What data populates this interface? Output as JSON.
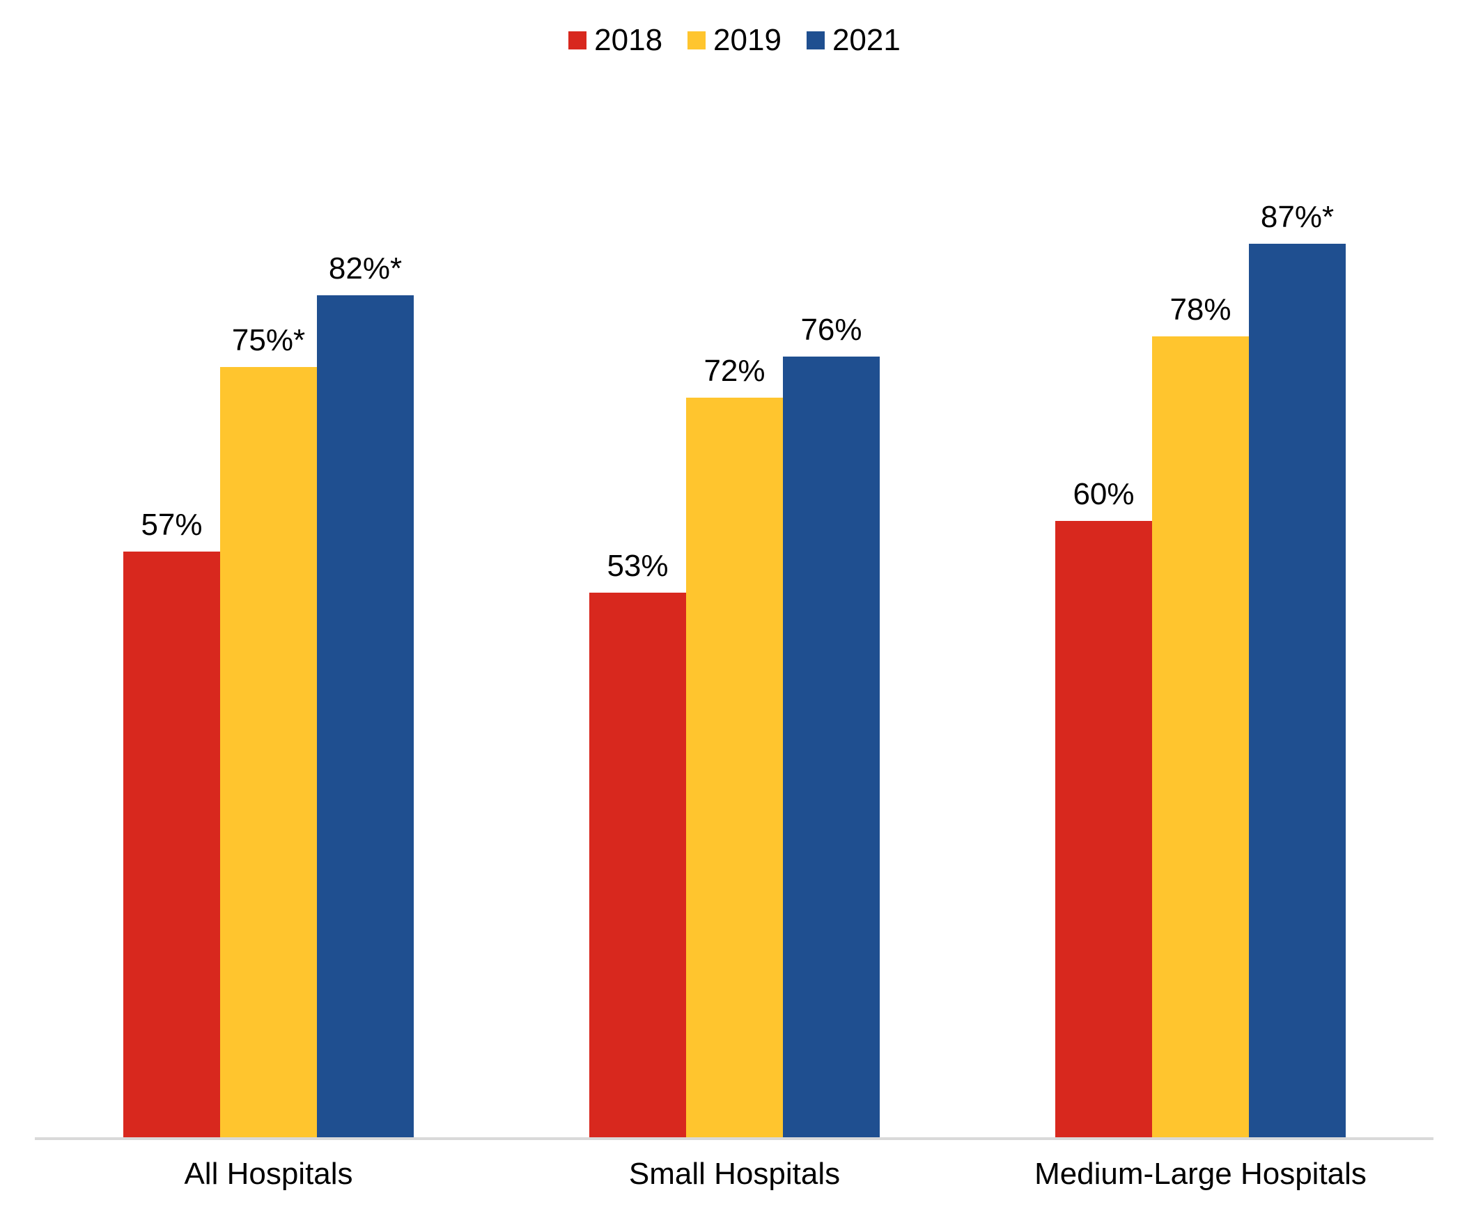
{
  "chart_data": {
    "type": "bar",
    "title": "",
    "xlabel": "",
    "ylabel": "",
    "ylim": [
      0,
      100
    ],
    "grid": false,
    "legend_position": "top-center",
    "axis_line_color": "#d9d9d9",
    "label_color": "#000000",
    "categories": [
      "All Hospitals",
      "Small Hospitals",
      "Medium-Large Hospitals"
    ],
    "series": [
      {
        "name": "2018",
        "color": "#d8281e",
        "values": [
          57,
          53,
          60
        ],
        "labels": [
          "57%",
          "53%",
          "60%"
        ]
      },
      {
        "name": "2019",
        "color": "#ffc52e",
        "values": [
          75,
          72,
          78
        ],
        "labels": [
          "75%*",
          "72%",
          "78%"
        ]
      },
      {
        "name": "2021",
        "color": "#1f4f90",
        "values": [
          82,
          76,
          87
        ],
        "labels": [
          "82%*",
          "76%",
          "87%*"
        ]
      }
    ]
  }
}
